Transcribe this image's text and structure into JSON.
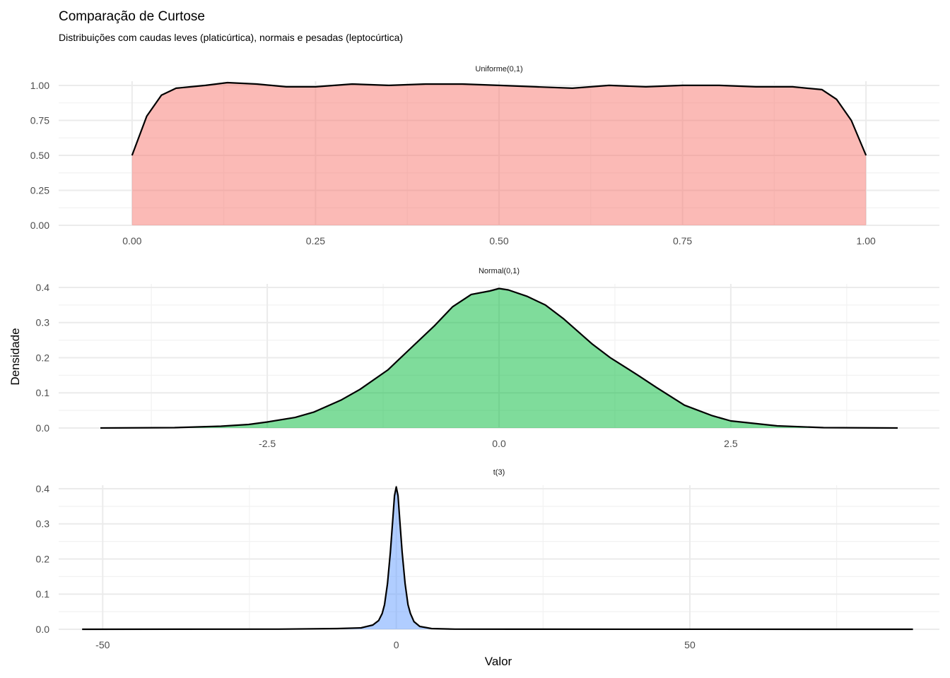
{
  "chart_data": {
    "type": "area",
    "title": "Comparação de Curtose",
    "subtitle": "Distribuições com caudas leves (platicúrtica), normais e pesadas (leptocúrtica)",
    "xlabel": "Valor",
    "ylabel": "Densidade",
    "grid": true,
    "facets": [
      {
        "name": "Uniforme(0,1)",
        "color": "#F8766D",
        "xlim": [
          -0.1,
          1.1
        ],
        "ylim": [
          0,
          1.03
        ],
        "xticks": [
          0.0,
          0.25,
          0.5,
          0.75,
          1.0
        ],
        "xtick_labels": [
          "0.00",
          "0.25",
          "0.50",
          "0.75",
          "1.00"
        ],
        "yticks": [
          0.0,
          0.25,
          0.5,
          0.75,
          1.0
        ],
        "ytick_labels": [
          "0.00",
          "0.25",
          "0.50",
          "0.75",
          "1.00"
        ],
        "x": [
          0.0,
          0.02,
          0.04,
          0.06,
          0.08,
          0.1,
          0.13,
          0.17,
          0.21,
          0.25,
          0.3,
          0.35,
          0.4,
          0.45,
          0.5,
          0.55,
          0.6,
          0.65,
          0.7,
          0.75,
          0.8,
          0.85,
          0.9,
          0.94,
          0.96,
          0.98,
          1.0
        ],
        "y": [
          0.5,
          0.78,
          0.93,
          0.98,
          0.99,
          1.0,
          1.02,
          1.01,
          0.99,
          0.99,
          1.01,
          1.0,
          1.01,
          1.01,
          1.0,
          0.99,
          0.98,
          1.0,
          0.99,
          1.0,
          1.0,
          0.99,
          0.99,
          0.97,
          0.9,
          0.75,
          0.5
        ]
      },
      {
        "name": "Normal(0,1)",
        "color": "#00BA38",
        "xlim": [
          -4.75,
          4.75
        ],
        "ylim": [
          0,
          0.41
        ],
        "xticks": [
          -2.5,
          0.0,
          2.5
        ],
        "xtick_labels": [
          "-2.5",
          "0.0",
          "2.5"
        ],
        "yticks": [
          0.0,
          0.1,
          0.2,
          0.3,
          0.4
        ],
        "ytick_labels": [
          "0.0",
          "0.1",
          "0.2",
          "0.3",
          "0.4"
        ],
        "x": [
          -4.3,
          -3.5,
          -3.0,
          -2.7,
          -2.5,
          -2.2,
          -2.0,
          -1.7,
          -1.5,
          -1.2,
          -1.0,
          -0.7,
          -0.5,
          -0.3,
          -0.1,
          0.0,
          0.1,
          0.3,
          0.5,
          0.7,
          1.0,
          1.2,
          1.5,
          1.7,
          2.0,
          2.3,
          2.5,
          3.0,
          3.5,
          4.3
        ],
        "y": [
          0.0,
          0.001,
          0.005,
          0.01,
          0.017,
          0.03,
          0.045,
          0.08,
          0.11,
          0.165,
          0.215,
          0.29,
          0.345,
          0.38,
          0.39,
          0.397,
          0.393,
          0.375,
          0.35,
          0.31,
          0.24,
          0.2,
          0.15,
          0.115,
          0.065,
          0.035,
          0.02,
          0.006,
          0.001,
          0.0
        ]
      },
      {
        "name": "t(3)",
        "color": "#619CFF",
        "xlim": [
          -57.5,
          92.5
        ],
        "ylim": [
          0,
          0.41
        ],
        "xticks": [
          -50,
          0,
          50
        ],
        "xtick_labels": [
          "-50",
          "0",
          "50"
        ],
        "yticks": [
          0.0,
          0.1,
          0.2,
          0.3,
          0.4
        ],
        "ytick_labels": [
          "0.0",
          "0.1",
          "0.2",
          "0.3",
          "0.4"
        ],
        "x": [
          -53.5,
          -20,
          -10,
          -6,
          -4,
          -3,
          -2.4,
          -2,
          -1.5,
          -1,
          -0.6,
          -0.3,
          0,
          0.3,
          0.6,
          1,
          1.5,
          2,
          2.4,
          3,
          4,
          6,
          10,
          20,
          88
        ],
        "y": [
          0.0,
          0.0005,
          0.002,
          0.004,
          0.012,
          0.025,
          0.045,
          0.07,
          0.13,
          0.22,
          0.31,
          0.38,
          0.405,
          0.38,
          0.31,
          0.22,
          0.13,
          0.07,
          0.045,
          0.022,
          0.008,
          0.002,
          0.0005,
          0.0002,
          0.0
        ]
      }
    ]
  }
}
